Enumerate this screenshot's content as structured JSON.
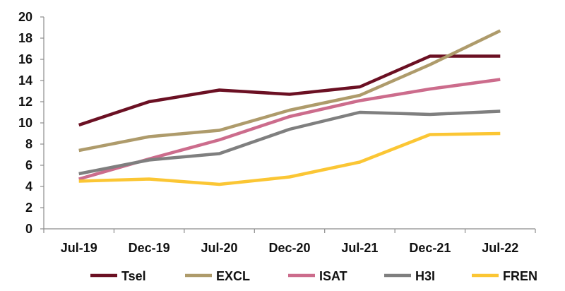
{
  "chart_data": {
    "type": "line",
    "title": "",
    "xlabel": "",
    "ylabel": "",
    "categories": [
      "Jul-19",
      "Dec-19",
      "Jul-20",
      "Dec-20",
      "Jul-21",
      "Dec-21",
      "Jul-22"
    ],
    "ylim": [
      0,
      20
    ],
    "yticks": [
      0,
      2,
      4,
      6,
      8,
      10,
      12,
      14,
      16,
      18,
      20
    ],
    "grid": false,
    "legend_position": "bottom",
    "series": [
      {
        "name": "Tsel",
        "color": "#6B1023",
        "values": [
          9.8,
          12.0,
          13.1,
          12.7,
          13.4,
          16.3,
          16.3
        ]
      },
      {
        "name": "EXCL",
        "color": "#AE9B6B",
        "values": [
          7.4,
          8.7,
          9.3,
          11.2,
          12.6,
          15.5,
          18.7
        ]
      },
      {
        "name": "ISAT",
        "color": "#CC6C8C",
        "values": [
          4.7,
          6.6,
          8.4,
          10.6,
          12.1,
          13.2,
          14.1
        ]
      },
      {
        "name": "H3I",
        "color": "#7F7F7F",
        "values": [
          5.2,
          6.5,
          7.1,
          9.4,
          11.0,
          10.8,
          11.1
        ]
      },
      {
        "name": "FREN",
        "color": "#FBC634",
        "values": [
          4.5,
          4.7,
          4.2,
          4.9,
          6.3,
          8.9,
          9.0
        ]
      }
    ]
  }
}
